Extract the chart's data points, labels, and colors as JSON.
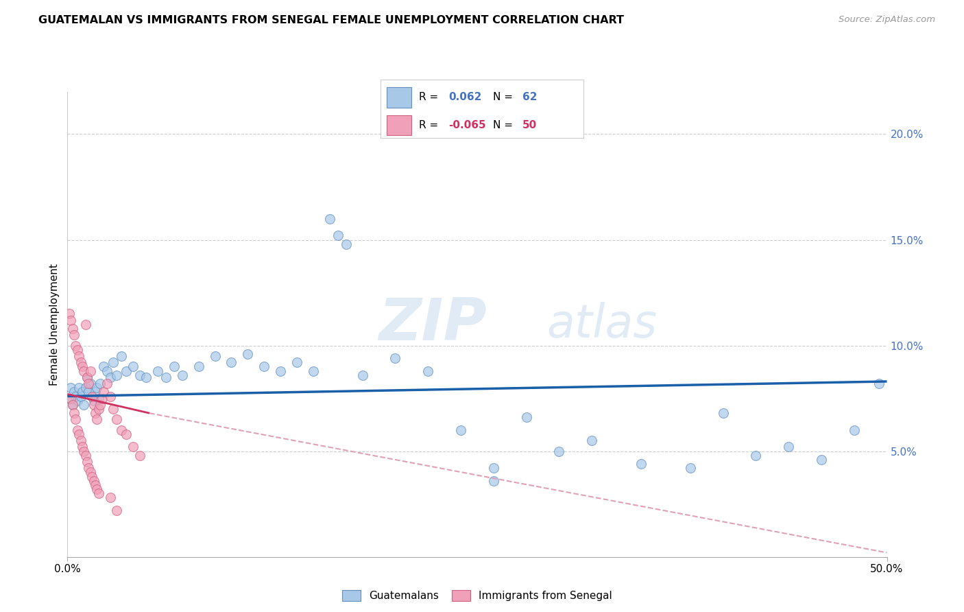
{
  "title": "GUATEMALAN VS IMMIGRANTS FROM SENEGAL FEMALE UNEMPLOYMENT CORRELATION CHART",
  "source": "Source: ZipAtlas.com",
  "ylabel": "Female Unemployment",
  "right_yticks": [
    "5.0%",
    "10.0%",
    "15.0%",
    "20.0%"
  ],
  "right_ytick_vals": [
    0.05,
    0.1,
    0.15,
    0.2
  ],
  "blue_color": "#a8c8e8",
  "pink_color": "#f0a0b8",
  "blue_line_color": "#1a5fa8",
  "pink_line_color": "#d03060",
  "pink_dash_color": "#e0a0b8",
  "xlim": [
    0.0,
    0.5
  ],
  "ylim": [
    0.0,
    0.22
  ],
  "watermark_zip": "ZIP",
  "watermark_atlas": "atlas",
  "guatemalan_x": [
    0.001,
    0.002,
    0.003,
    0.004,
    0.005,
    0.006,
    0.007,
    0.008,
    0.009,
    0.01,
    0.011,
    0.012,
    0.013,
    0.014,
    0.015,
    0.016,
    0.017,
    0.018,
    0.019,
    0.02,
    0.022,
    0.024,
    0.026,
    0.028,
    0.03,
    0.033,
    0.036,
    0.04,
    0.044,
    0.048,
    0.055,
    0.06,
    0.065,
    0.07,
    0.08,
    0.09,
    0.1,
    0.11,
    0.12,
    0.13,
    0.14,
    0.15,
    0.16,
    0.17,
    0.18,
    0.2,
    0.22,
    0.24,
    0.26,
    0.28,
    0.3,
    0.32,
    0.35,
    0.38,
    0.4,
    0.42,
    0.44,
    0.46,
    0.48,
    0.495,
    0.165,
    0.26
  ],
  "guatemalan_y": [
    0.075,
    0.08,
    0.072,
    0.078,
    0.076,
    0.074,
    0.08,
    0.076,
    0.078,
    0.072,
    0.08,
    0.085,
    0.078,
    0.082,
    0.076,
    0.074,
    0.078,
    0.08,
    0.075,
    0.082,
    0.09,
    0.088,
    0.085,
    0.092,
    0.086,
    0.095,
    0.088,
    0.09,
    0.086,
    0.085,
    0.088,
    0.085,
    0.09,
    0.086,
    0.09,
    0.095,
    0.092,
    0.096,
    0.09,
    0.088,
    0.092,
    0.088,
    0.16,
    0.148,
    0.086,
    0.094,
    0.088,
    0.06,
    0.042,
    0.066,
    0.05,
    0.055,
    0.044,
    0.042,
    0.068,
    0.048,
    0.052,
    0.046,
    0.06,
    0.082,
    0.152,
    0.036
  ],
  "senegal_x": [
    0.001,
    0.002,
    0.003,
    0.004,
    0.005,
    0.006,
    0.007,
    0.008,
    0.009,
    0.01,
    0.011,
    0.012,
    0.013,
    0.014,
    0.015,
    0.016,
    0.017,
    0.018,
    0.019,
    0.02,
    0.021,
    0.022,
    0.024,
    0.026,
    0.028,
    0.03,
    0.033,
    0.036,
    0.04,
    0.044,
    0.002,
    0.003,
    0.004,
    0.005,
    0.006,
    0.007,
    0.008,
    0.009,
    0.01,
    0.011,
    0.012,
    0.013,
    0.014,
    0.015,
    0.016,
    0.017,
    0.018,
    0.019,
    0.026,
    0.03
  ],
  "senegal_y": [
    0.115,
    0.112,
    0.108,
    0.105,
    0.1,
    0.098,
    0.095,
    0.092,
    0.09,
    0.088,
    0.11,
    0.085,
    0.082,
    0.088,
    0.076,
    0.072,
    0.068,
    0.065,
    0.07,
    0.072,
    0.075,
    0.078,
    0.082,
    0.076,
    0.07,
    0.065,
    0.06,
    0.058,
    0.052,
    0.048,
    0.075,
    0.072,
    0.068,
    0.065,
    0.06,
    0.058,
    0.055,
    0.052,
    0.05,
    0.048,
    0.045,
    0.042,
    0.04,
    0.038,
    0.036,
    0.034,
    0.032,
    0.03,
    0.028,
    0.022
  ],
  "trend_blue_x0": 0.0,
  "trend_blue_y0": 0.076,
  "trend_blue_x1": 0.5,
  "trend_blue_y1": 0.083,
  "trend_pink_x0": 0.0,
  "trend_pink_y0": 0.077,
  "trend_pink_x1": 0.05,
  "trend_pink_y1": 0.068,
  "trend_pink_dash_x0": 0.05,
  "trend_pink_dash_y0": 0.068,
  "trend_pink_dash_x1": 0.5,
  "trend_pink_dash_y1": 0.002
}
